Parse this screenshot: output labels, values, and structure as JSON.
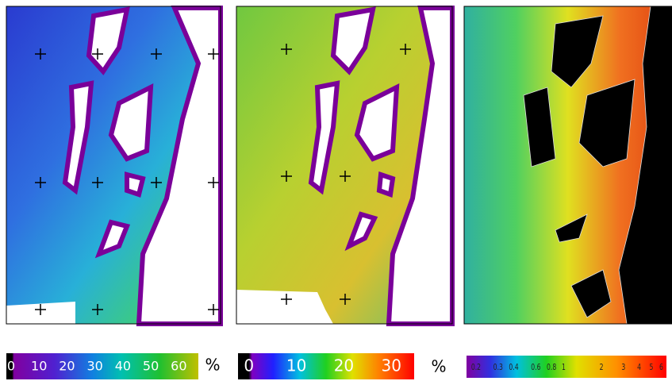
{
  "colorbars": [
    {
      "ticks": [
        0,
        10,
        20,
        30,
        40,
        50,
        60
      ],
      "lim": [
        -1.7,
        67
      ],
      "unit": "%"
    },
    {
      "ticks": [
        0,
        10,
        20,
        30
      ],
      "lim": [
        -2.3,
        34.8
      ],
      "unit": "%"
    },
    {
      "ticks": [
        0.2,
        0.3,
        0.4,
        0.6,
        0.8,
        1,
        2,
        3,
        4,
        5,
        6
      ],
      "lim": [
        0.168,
        6.6
      ],
      "scale": "log"
    }
  ]
}
